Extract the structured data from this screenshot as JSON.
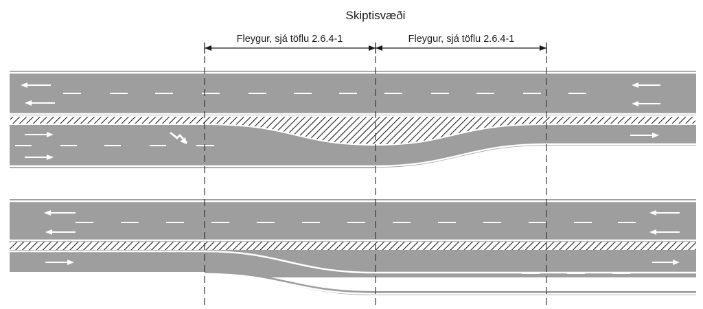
{
  "title": "Skiptisvæði",
  "dimension_labels": [
    "Fleygur, sjá töflu 2.6.4-1",
    "Fleygur, sjá töflu 2.6.4-1"
  ],
  "colors": {
    "road": "#9e9e9e",
    "marking": "#ffffff",
    "hatch": "#1e1e1e",
    "guide": "#333333"
  }
}
